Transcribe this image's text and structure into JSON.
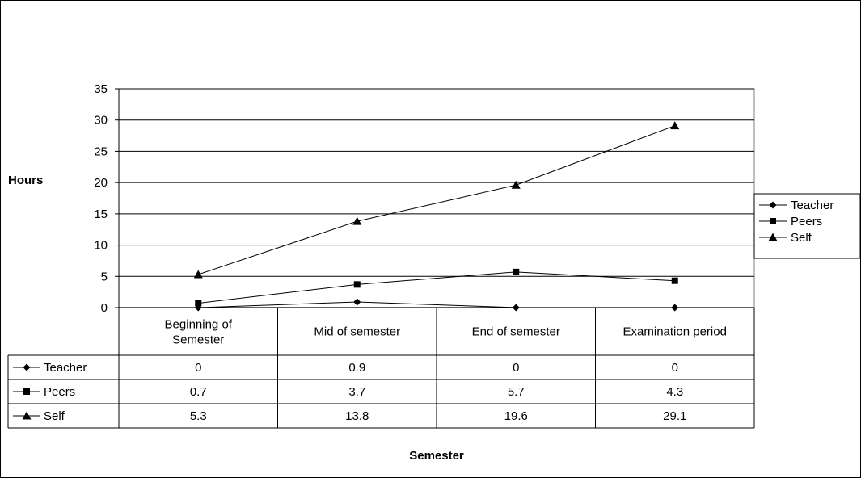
{
  "chart_data": {
    "type": "line",
    "title": "",
    "xlabel": "Semester",
    "ylabel": "Hours",
    "ylim": [
      0,
      35
    ],
    "yticks": [
      0,
      5,
      10,
      15,
      20,
      25,
      30,
      35
    ],
    "grid": true,
    "legend_position": "right",
    "categories": [
      [
        "Beginning of",
        "Semester"
      ],
      [
        "Mid of semester"
      ],
      [
        "End of semester"
      ],
      [
        "Examination period"
      ]
    ],
    "series": [
      {
        "name": "Teacher",
        "marker": "diamond",
        "color": "#000000",
        "values": [
          0,
          0.9,
          0,
          0
        ],
        "labels": [
          "0",
          "0.9",
          "0",
          "0"
        ]
      },
      {
        "name": "Peers",
        "marker": "square",
        "color": "#000000",
        "values": [
          0.7,
          3.7,
          5.7,
          4.3
        ],
        "labels": [
          "0.7",
          "3.7",
          "5.7",
          "4.3"
        ]
      },
      {
        "name": "Self",
        "marker": "triangle",
        "color": "#000000",
        "values": [
          5.3,
          13.8,
          19.6,
          29.1
        ],
        "labels": [
          "5.3",
          "13.8",
          "19.6",
          "29.1"
        ]
      }
    ]
  }
}
